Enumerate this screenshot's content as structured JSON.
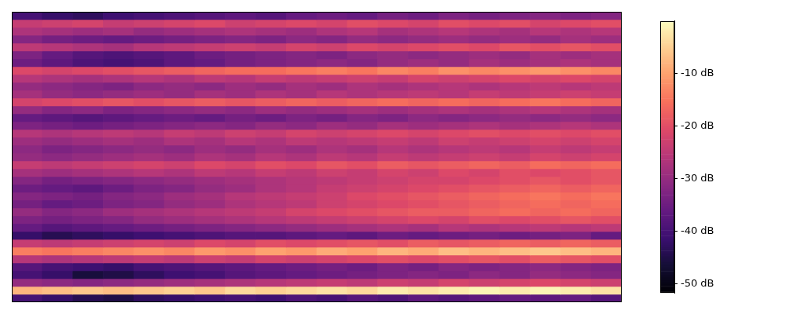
{
  "chart_data": {
    "type": "heatmap",
    "color": "magma",
    "tick_labels": false,
    "colorbar": {
      "range": [
        -51.7,
        0
      ],
      "ticks": [
        {
          "value": -10,
          "label": "-10 dB"
        },
        {
          "value": -20,
          "label": "-20 dB"
        },
        {
          "value": -30,
          "label": "-30 dB"
        },
        {
          "value": -40,
          "label": "-40 dB"
        },
        {
          "value": -50,
          "label": "-50 dB"
        }
      ]
    },
    "cells": [
      [
        -40,
        -42,
        -43,
        -41,
        -40,
        -39,
        -38,
        -37,
        -38,
        -36,
        -35,
        -36,
        -34,
        -35,
        -33,
        -34,
        -33,
        -32,
        -33,
        -32
      ],
      [
        -24,
        -23,
        -22,
        -24,
        -23,
        -22,
        -21,
        -23,
        -22,
        -21,
        -22,
        -20,
        -21,
        -22,
        -20,
        -21,
        -20,
        -22,
        -21,
        -20
      ],
      [
        -27,
        -28,
        -29,
        -28,
        -30,
        -29,
        -28,
        -27,
        -28,
        -29,
        -27,
        -26,
        -28,
        -27,
        -26,
        -27,
        -28,
        -26,
        -27,
        -26
      ],
      [
        -32,
        -34,
        -35,
        -36,
        -35,
        -34,
        -33,
        -32,
        -33,
        -31,
        -32,
        -30,
        -31,
        -30,
        -29,
        -30,
        -29,
        -30,
        -28,
        -29
      ],
      [
        -25,
        -26,
        -27,
        -28,
        -26,
        -25,
        -24,
        -23,
        -24,
        -22,
        -23,
        -21,
        -22,
        -21,
        -20,
        -21,
        -19,
        -20,
        -19,
        -20
      ],
      [
        -33,
        -36,
        -38,
        -39,
        -38,
        -37,
        -35,
        -34,
        -33,
        -32,
        -33,
        -31,
        -30,
        -31,
        -30,
        -29,
        -30,
        -28,
        -29,
        -28
      ],
      [
        -35,
        -37,
        -39,
        -40,
        -39,
        -37,
        -36,
        -34,
        -33,
        -32,
        -31,
        -32,
        -30,
        -29,
        -30,
        -28,
        -29,
        -28,
        -27,
        -28
      ],
      [
        -21,
        -22,
        -21,
        -20,
        -19,
        -18,
        -17,
        -16,
        -16,
        -15,
        -14,
        -15,
        -13,
        -14,
        -12,
        -13,
        -12,
        -11,
        -12,
        -13
      ],
      [
        -26,
        -27,
        -28,
        -27,
        -26,
        -27,
        -25,
        -26,
        -24,
        -25,
        -24,
        -23,
        -24,
        -22,
        -23,
        -22,
        -21,
        -22,
        -21,
        -22
      ],
      [
        -30,
        -31,
        -32,
        -33,
        -31,
        -30,
        -31,
        -29,
        -30,
        -28,
        -29,
        -27,
        -28,
        -27,
        -26,
        -27,
        -26,
        -25,
        -26,
        -25
      ],
      [
        -28,
        -30,
        -31,
        -30,
        -29,
        -30,
        -28,
        -29,
        -27,
        -28,
        -26,
        -27,
        -26,
        -25,
        -26,
        -24,
        -25,
        -24,
        -23,
        -24
      ],
      [
        -22,
        -21,
        -20,
        -19,
        -20,
        -19,
        -18,
        -19,
        -18,
        -17,
        -18,
        -17,
        -16,
        -17,
        -16,
        -17,
        -16,
        -15,
        -16,
        -17
      ],
      [
        -30,
        -32,
        -31,
        -33,
        -32,
        -31,
        -30,
        -31,
        -29,
        -30,
        -29,
        -28,
        -29,
        -28,
        -27,
        -28,
        -27,
        -26,
        -27,
        -28
      ],
      [
        -36,
        -37,
        -38,
        -37,
        -36,
        -35,
        -36,
        -34,
        -35,
        -33,
        -34,
        -32,
        -33,
        -31,
        -32,
        -31,
        -30,
        -31,
        -30,
        -31
      ],
      [
        -33,
        -34,
        -35,
        -34,
        -33,
        -32,
        -31,
        -32,
        -30,
        -31,
        -29,
        -30,
        -28,
        -29,
        -28,
        -27,
        -28,
        -27,
        -26,
        -27
      ],
      [
        -26,
        -27,
        -26,
        -25,
        -26,
        -24,
        -25,
        -23,
        -24,
        -22,
        -23,
        -22,
        -21,
        -22,
        -21,
        -20,
        -21,
        -20,
        -21,
        -20
      ],
      [
        -29,
        -30,
        -29,
        -28,
        -29,
        -27,
        -28,
        -26,
        -27,
        -25,
        -26,
        -25,
        -24,
        -25,
        -23,
        -24,
        -23,
        -22,
        -23,
        -22
      ],
      [
        -31,
        -33,
        -32,
        -31,
        -30,
        -31,
        -29,
        -30,
        -28,
        -29,
        -27,
        -28,
        -26,
        -27,
        -26,
        -25,
        -26,
        -24,
        -25,
        -24
      ],
      [
        -30,
        -31,
        -30,
        -29,
        -28,
        -29,
        -27,
        -28,
        -26,
        -27,
        -25,
        -26,
        -24,
        -25,
        -24,
        -23,
        -24,
        -22,
        -23,
        -22
      ],
      [
        -24,
        -25,
        -24,
        -23,
        -22,
        -23,
        -21,
        -22,
        -20,
        -21,
        -19,
        -20,
        -18,
        -19,
        -18,
        -17,
        -18,
        -16,
        -17,
        -16
      ],
      [
        -28,
        -29,
        -28,
        -27,
        -26,
        -27,
        -25,
        -26,
        -24,
        -25,
        -23,
        -24,
        -22,
        -23,
        -21,
        -22,
        -20,
        -21,
        -20,
        -19
      ],
      [
        -32,
        -34,
        -33,
        -32,
        -31,
        -30,
        -29,
        -28,
        -27,
        -26,
        -25,
        -24,
        -23,
        -22,
        -22,
        -21,
        -20,
        -19,
        -20,
        -19
      ],
      [
        -35,
        -36,
        -37,
        -35,
        -33,
        -32,
        -30,
        -29,
        -27,
        -26,
        -24,
        -23,
        -22,
        -21,
        -20,
        -19,
        -18,
        -17,
        -18,
        -17
      ],
      [
        -32,
        -33,
        -34,
        -32,
        -31,
        -29,
        -28,
        -26,
        -25,
        -24,
        -23,
        -21,
        -20,
        -19,
        -18,
        -17,
        -16,
        -15,
        -16,
        -15
      ],
      [
        -34,
        -36,
        -35,
        -33,
        -32,
        -30,
        -29,
        -27,
        -26,
        -25,
        -23,
        -22,
        -21,
        -20,
        -19,
        -18,
        -17,
        -16,
        -17,
        -16
      ],
      [
        -30,
        -32,
        -31,
        -29,
        -28,
        -27,
        -26,
        -25,
        -24,
        -22,
        -21,
        -20,
        -19,
        -18,
        -18,
        -17,
        -16,
        -17,
        -16,
        -17
      ],
      [
        -33,
        -34,
        -33,
        -32,
        -30,
        -29,
        -28,
        -27,
        -26,
        -25,
        -24,
        -23,
        -22,
        -21,
        -22,
        -20,
        -21,
        -20,
        -19,
        -20
      ],
      [
        -36,
        -38,
        -37,
        -36,
        -35,
        -34,
        -33,
        -32,
        -31,
        -30,
        -29,
        -28,
        -27,
        -28,
        -26,
        -27,
        -26,
        -25,
        -26,
        -25
      ],
      [
        -42,
        -44,
        -43,
        -42,
        -41,
        -40,
        -39,
        -38,
        -38,
        -37,
        -36,
        -37,
        -35,
        -36,
        -35,
        -34,
        -35,
        -34,
        -33,
        -36
      ],
      [
        -24,
        -25,
        -24,
        -23,
        -22,
        -23,
        -21,
        -22,
        -20,
        -21,
        -20,
        -19,
        -20,
        -18,
        -19,
        -18,
        -17,
        -18,
        -17,
        -18
      ],
      [
        -14,
        -15,
        -14,
        -13,
        -12,
        -13,
        -11,
        -12,
        -10,
        -11,
        -9,
        -10,
        -8,
        -9,
        -7,
        -8,
        -7,
        -6,
        -7,
        -8
      ],
      [
        -26,
        -27,
        -26,
        -25,
        -24,
        -25,
        -23,
        -24,
        -22,
        -23,
        -22,
        -21,
        -20,
        -21,
        -20,
        -19,
        -20,
        -18,
        -19,
        -20
      ],
      [
        -38,
        -40,
        -41,
        -42,
        -40,
        -39,
        -38,
        -37,
        -36,
        -35,
        -34,
        -35,
        -33,
        -34,
        -32,
        -33,
        -32,
        -31,
        -32,
        -33
      ],
      [
        -40,
        -42,
        -46,
        -45,
        -43,
        -41,
        -40,
        -38,
        -37,
        -36,
        -35,
        -34,
        -33,
        -32,
        -33,
        -31,
        -32,
        -30,
        -31,
        -32
      ],
      [
        -30,
        -31,
        -32,
        -31,
        -30,
        -29,
        -28,
        -27,
        -26,
        -25,
        -24,
        -25,
        -23,
        -24,
        -22,
        -23,
        -22,
        -21,
        -22,
        -23
      ],
      [
        -8,
        -7,
        -6,
        -7,
        -6,
        -5,
        -6,
        -4,
        -5,
        -4,
        -3,
        -4,
        -2,
        -3,
        -2,
        -1,
        -2,
        -1,
        -2,
        -3
      ],
      [
        -40,
        -42,
        -44,
        -45,
        -43,
        -42,
        -41,
        -40,
        -41,
        -39,
        -40,
        -38,
        -39,
        -37,
        -38,
        -37,
        -36,
        -37,
        -36,
        -38
      ]
    ]
  }
}
